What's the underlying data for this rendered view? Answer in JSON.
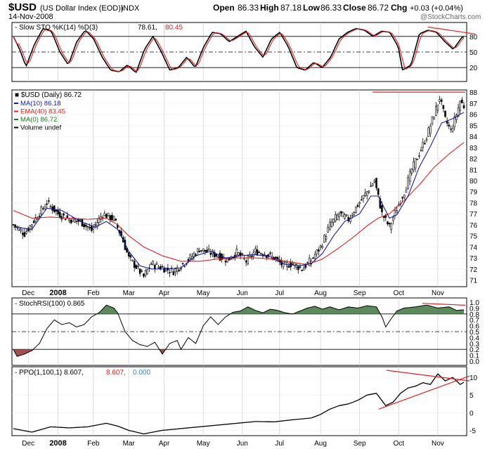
{
  "header": {
    "symbol": "$USD",
    "name": "(US Dollar Index (EOD))",
    "exchange": "INDX",
    "date": "14-Nov-2008",
    "open_label": "Open",
    "open": "86.33",
    "high_label": "High",
    "high": "87.18",
    "low_label": "Low",
    "low": "86.33",
    "close_label": "Close",
    "close": "86.72",
    "chg_label": "Chg",
    "chg": "+0.03 (+0.04%)",
    "watermark": "@StockCharts.com"
  },
  "colors": {
    "price": "#000000",
    "ma10": "#1a1aa0",
    "ema40": "#e02020",
    "signal": "#e02020",
    "trend": "#e02020",
    "rsi_fill": "#5c8a5c",
    "rsi_fill_low": "#a05050",
    "grid": "#cccccc"
  },
  "chart_data": [
    {
      "type": "line",
      "title": "Slow STO %K(14) %D(3)",
      "k_label": "78.61",
      "d_label": "80.45",
      "ylim": [
        0,
        100
      ],
      "yticks": [
        "80",
        "50",
        "20"
      ],
      "reference_lines": [
        80,
        50,
        20
      ],
      "k_anchors": [
        [
          0,
          80
        ],
        [
          3,
          55
        ],
        [
          6,
          22
        ],
        [
          10,
          65
        ],
        [
          14,
          95
        ],
        [
          18,
          90
        ],
        [
          22,
          50
        ],
        [
          26,
          25
        ],
        [
          30,
          70
        ],
        [
          34,
          92
        ],
        [
          38,
          75
        ],
        [
          42,
          40
        ],
        [
          46,
          15
        ],
        [
          50,
          12
        ],
        [
          54,
          25
        ],
        [
          58,
          10
        ],
        [
          62,
          55
        ],
        [
          66,
          80
        ],
        [
          70,
          50
        ],
        [
          74,
          15
        ],
        [
          78,
          20
        ],
        [
          82,
          40
        ],
        [
          86,
          20
        ],
        [
          90,
          60
        ],
        [
          94,
          88
        ],
        [
          98,
          85
        ],
        [
          102,
          70
        ],
        [
          106,
          80
        ],
        [
          110,
          90
        ],
        [
          114,
          60
        ],
        [
          118,
          40
        ],
        [
          122,
          75
        ],
        [
          126,
          88
        ],
        [
          130,
          60
        ],
        [
          134,
          20
        ],
        [
          138,
          15
        ],
        [
          142,
          30
        ],
        [
          146,
          20
        ],
        [
          150,
          40
        ],
        [
          154,
          75
        ],
        [
          158,
          88
        ],
        [
          162,
          95
        ],
        [
          166,
          92
        ],
        [
          170,
          80
        ],
        [
          174,
          90
        ],
        [
          178,
          88
        ],
        [
          182,
          60
        ],
        [
          184,
          15
        ],
        [
          188,
          25
        ],
        [
          192,
          85
        ],
        [
          196,
          92
        ],
        [
          200,
          88
        ],
        [
          204,
          70
        ],
        [
          208,
          55
        ],
        [
          212,
          78
        ],
        [
          213,
          79
        ]
      ],
      "trendline": {
        "x": [
          196,
          213
        ],
        "y": [
          98,
          82
        ]
      }
    },
    {
      "type": "candlestick",
      "title": "$USD (Daily)",
      "last": "86.72",
      "legend": [
        {
          "name": "MA(10)",
          "value": "86.18"
        },
        {
          "name": "EMA(40)",
          "value": "83.45"
        },
        {
          "name": "MA(0)",
          "value": "86.72"
        },
        {
          "name": "Volume undef",
          "value": ""
        }
      ],
      "ylim": [
        70.4,
        88.2
      ],
      "yticks": [
        "88",
        "87",
        "86",
        "85",
        "84",
        "83",
        "82",
        "81",
        "80",
        "79",
        "78",
        "77",
        "76",
        "75",
        "74",
        "73",
        "72",
        "71"
      ],
      "xticks": [
        {
          "i": 8,
          "label": "Dec",
          "bold": false
        },
        {
          "i": 24,
          "label": "2008",
          "bold": true
        },
        {
          "i": 43,
          "label": "Feb",
          "bold": false
        },
        {
          "i": 62,
          "label": "Mar",
          "bold": false
        },
        {
          "i": 81,
          "label": "Apr",
          "bold": false
        },
        {
          "i": 102,
          "label": "May",
          "bold": false
        },
        {
          "i": 123,
          "label": "Jun",
          "bold": false
        },
        {
          "i": 143,
          "label": "Jul",
          "bold": false
        },
        {
          "i": 165,
          "label": "Aug",
          "bold": false
        },
        {
          "i": 186,
          "label": "Sep",
          "bold": false
        },
        {
          "i": 207,
          "label": "Oct",
          "bold": false
        },
        {
          "i": 228,
          "label": "Nov",
          "bold": false
        }
      ],
      "n_bars": 243,
      "close_anchors": [
        [
          0,
          76.0
        ],
        [
          6,
          75.2
        ],
        [
          12,
          76.6
        ],
        [
          18,
          78.0
        ],
        [
          24,
          77.0
        ],
        [
          30,
          76.5
        ],
        [
          36,
          76.3
        ],
        [
          42,
          75.5
        ],
        [
          48,
          77.0
        ],
        [
          54,
          76.5
        ],
        [
          58,
          75.0
        ],
        [
          62,
          73.0
        ],
        [
          66,
          72.2
        ],
        [
          70,
          71.3
        ],
        [
          74,
          72.5
        ],
        [
          78,
          72.2
        ],
        [
          82,
          72.0
        ],
        [
          86,
          71.8
        ],
        [
          90,
          72.3
        ],
        [
          95,
          73.0
        ],
        [
          100,
          73.8
        ],
        [
          105,
          73.5
        ],
        [
          110,
          73.2
        ],
        [
          115,
          72.8
        ],
        [
          120,
          73.5
        ],
        [
          125,
          72.7
        ],
        [
          130,
          73.6
        ],
        [
          135,
          73.4
        ],
        [
          140,
          73.0
        ],
        [
          145,
          72.3
        ],
        [
          150,
          72.5
        ],
        [
          155,
          72.0
        ],
        [
          160,
          72.8
        ],
        [
          165,
          74.0
        ],
        [
          170,
          76.0
        ],
        [
          175,
          77.0
        ],
        [
          180,
          76.5
        ],
        [
          185,
          77.8
        ],
        [
          190,
          79.0
        ],
        [
          194,
          80.0
        ],
        [
          198,
          77.0
        ],
        [
          202,
          75.8
        ],
        [
          206,
          77.5
        ],
        [
          210,
          79.0
        ],
        [
          214,
          81.0
        ],
        [
          218,
          82.5
        ],
        [
          222,
          84.0
        ],
        [
          226,
          86.0
        ],
        [
          229,
          87.5
        ],
        [
          232,
          85.5
        ],
        [
          235,
          84.5
        ],
        [
          238,
          86.0
        ],
        [
          240,
          87.2
        ],
        [
          242,
          86.72
        ]
      ],
      "ma10_anchors": [
        [
          0,
          75.8
        ],
        [
          10,
          75.6
        ],
        [
          18,
          77.5
        ],
        [
          26,
          77.3
        ],
        [
          36,
          76.3
        ],
        [
          44,
          75.8
        ],
        [
          50,
          76.3
        ],
        [
          56,
          75.6
        ],
        [
          62,
          73.6
        ],
        [
          68,
          72.3
        ],
        [
          74,
          72.0
        ],
        [
          82,
          72.0
        ],
        [
          90,
          72.1
        ],
        [
          98,
          73.2
        ],
        [
          106,
          73.6
        ],
        [
          114,
          73.0
        ],
        [
          122,
          73.2
        ],
        [
          130,
          73.3
        ],
        [
          138,
          73.1
        ],
        [
          146,
          72.4
        ],
        [
          154,
          72.3
        ],
        [
          160,
          72.5
        ],
        [
          166,
          73.4
        ],
        [
          172,
          75.0
        ],
        [
          178,
          76.3
        ],
        [
          186,
          77.0
        ],
        [
          192,
          78.6
        ],
        [
          196,
          78.6
        ],
        [
          202,
          76.6
        ],
        [
          206,
          76.9
        ],
        [
          212,
          78.6
        ],
        [
          218,
          81.2
        ],
        [
          224,
          83.1
        ],
        [
          230,
          85.2
        ],
        [
          236,
          85.6
        ],
        [
          242,
          86.18
        ]
      ],
      "ema40_anchors": [
        [
          0,
          77.3
        ],
        [
          10,
          76.6
        ],
        [
          20,
          76.7
        ],
        [
          30,
          76.6
        ],
        [
          40,
          76.5
        ],
        [
          50,
          76.6
        ],
        [
          56,
          76.0
        ],
        [
          62,
          75.0
        ],
        [
          70,
          74.0
        ],
        [
          80,
          73.2
        ],
        [
          90,
          72.7
        ],
        [
          100,
          72.7
        ],
        [
          110,
          72.9
        ],
        [
          120,
          73.0
        ],
        [
          130,
          73.0
        ],
        [
          140,
          72.9
        ],
        [
          150,
          72.6
        ],
        [
          158,
          72.4
        ],
        [
          166,
          72.9
        ],
        [
          174,
          73.8
        ],
        [
          182,
          74.8
        ],
        [
          190,
          75.9
        ],
        [
          196,
          76.6
        ],
        [
          202,
          77.0
        ],
        [
          210,
          78.2
        ],
        [
          218,
          79.6
        ],
        [
          226,
          81.2
        ],
        [
          234,
          82.4
        ],
        [
          242,
          83.45
        ]
      ],
      "resistance": {
        "x": [
          196,
          242
        ],
        "y": 88.0
      }
    },
    {
      "type": "area",
      "title": "StochRSI(100)",
      "last": "0.865",
      "ylim": [
        0,
        1.0
      ],
      "yticks": [
        "1.0",
        "0.9",
        "0.8",
        "0.7",
        "0.6",
        "0.5",
        "0.4",
        "0.3",
        "0.2",
        "0.1",
        "0.0"
      ],
      "reference_lines": [
        0.8,
        0.5,
        0.2
      ],
      "anchors": [
        [
          0,
          0.2
        ],
        [
          2,
          0.08
        ],
        [
          6,
          0.12
        ],
        [
          10,
          0.18
        ],
        [
          14,
          0.3
        ],
        [
          18,
          0.55
        ],
        [
          22,
          0.7
        ],
        [
          26,
          0.62
        ],
        [
          30,
          0.65
        ],
        [
          34,
          0.58
        ],
        [
          38,
          0.62
        ],
        [
          42,
          0.75
        ],
        [
          46,
          0.82
        ],
        [
          50,
          0.95
        ],
        [
          54,
          0.9
        ],
        [
          56,
          0.82
        ],
        [
          60,
          0.5
        ],
        [
          64,
          0.35
        ],
        [
          68,
          0.28
        ],
        [
          72,
          0.25
        ],
        [
          76,
          0.32
        ],
        [
          80,
          0.12
        ],
        [
          84,
          0.3
        ],
        [
          88,
          0.35
        ],
        [
          90,
          0.2
        ],
        [
          94,
          0.4
        ],
        [
          98,
          0.3
        ],
        [
          102,
          0.6
        ],
        [
          106,
          0.75
        ],
        [
          110,
          0.62
        ],
        [
          114,
          0.75
        ],
        [
          118,
          0.83
        ],
        [
          122,
          0.85
        ],
        [
          126,
          0.92
        ],
        [
          130,
          0.86
        ],
        [
          134,
          0.82
        ],
        [
          138,
          0.88
        ],
        [
          142,
          0.86
        ],
        [
          146,
          0.82
        ],
        [
          150,
          0.8
        ],
        [
          154,
          0.85
        ],
        [
          158,
          0.9
        ],
        [
          162,
          0.93
        ],
        [
          166,
          0.88
        ],
        [
          170,
          0.92
        ],
        [
          175,
          0.87
        ],
        [
          180,
          0.92
        ],
        [
          185,
          0.9
        ],
        [
          190,
          0.94
        ],
        [
          195,
          0.92
        ],
        [
          198,
          0.75
        ],
        [
          200,
          0.58
        ],
        [
          203,
          0.72
        ],
        [
          206,
          0.85
        ],
        [
          210,
          0.9
        ],
        [
          216,
          0.92
        ],
        [
          222,
          0.95
        ],
        [
          228,
          0.9
        ],
        [
          234,
          0.92
        ],
        [
          238,
          0.86
        ],
        [
          242,
          0.87
        ]
      ],
      "trendline": {
        "x": [
          228,
          242
        ],
        "y": [
          0.98,
          0.9
        ]
      }
    },
    {
      "type": "line",
      "title": "PPO(1,100,1)",
      "ppo_label": "8.607",
      "signal_label": "8.607",
      "hist_label": "0.000",
      "ylim": [
        -6.5,
        13
      ],
      "yticks": [
        "10",
        "5",
        "0",
        "-5"
      ],
      "anchors": [
        [
          0,
          -4.5
        ],
        [
          10,
          -5.5
        ],
        [
          20,
          -4.0
        ],
        [
          30,
          -4.3
        ],
        [
          40,
          -4.0
        ],
        [
          50,
          -3.0
        ],
        [
          56,
          -3.8
        ],
        [
          62,
          -5.0
        ],
        [
          70,
          -6.0
        ],
        [
          80,
          -5.0
        ],
        [
          90,
          -4.5
        ],
        [
          100,
          -4.0
        ],
        [
          110,
          -3.5
        ],
        [
          120,
          -3.0
        ],
        [
          130,
          -2.5
        ],
        [
          140,
          -2.6
        ],
        [
          150,
          -2.0
        ],
        [
          160,
          -1.5
        ],
        [
          165,
          -0.5
        ],
        [
          170,
          1.0
        ],
        [
          175,
          2.0
        ],
        [
          180,
          2.5
        ],
        [
          185,
          3.5
        ],
        [
          190,
          5.0
        ],
        [
          195,
          5.5
        ],
        [
          200,
          2.0
        ],
        [
          204,
          3.0
        ],
        [
          208,
          5.5
        ],
        [
          212,
          7.0
        ],
        [
          216,
          7.5
        ],
        [
          220,
          8.5
        ],
        [
          224,
          8.0
        ],
        [
          228,
          11.0
        ],
        [
          232,
          9.0
        ],
        [
          236,
          10.0
        ],
        [
          240,
          8.0
        ],
        [
          242,
          8.607
        ]
      ],
      "trendline_upper": {
        "x": [
          205,
          242
        ],
        "y": [
          12.0,
          9.0
        ]
      },
      "trendline_lower": {
        "x": [
          200,
          242
        ],
        "y": [
          1.0,
          10.0
        ]
      }
    }
  ]
}
